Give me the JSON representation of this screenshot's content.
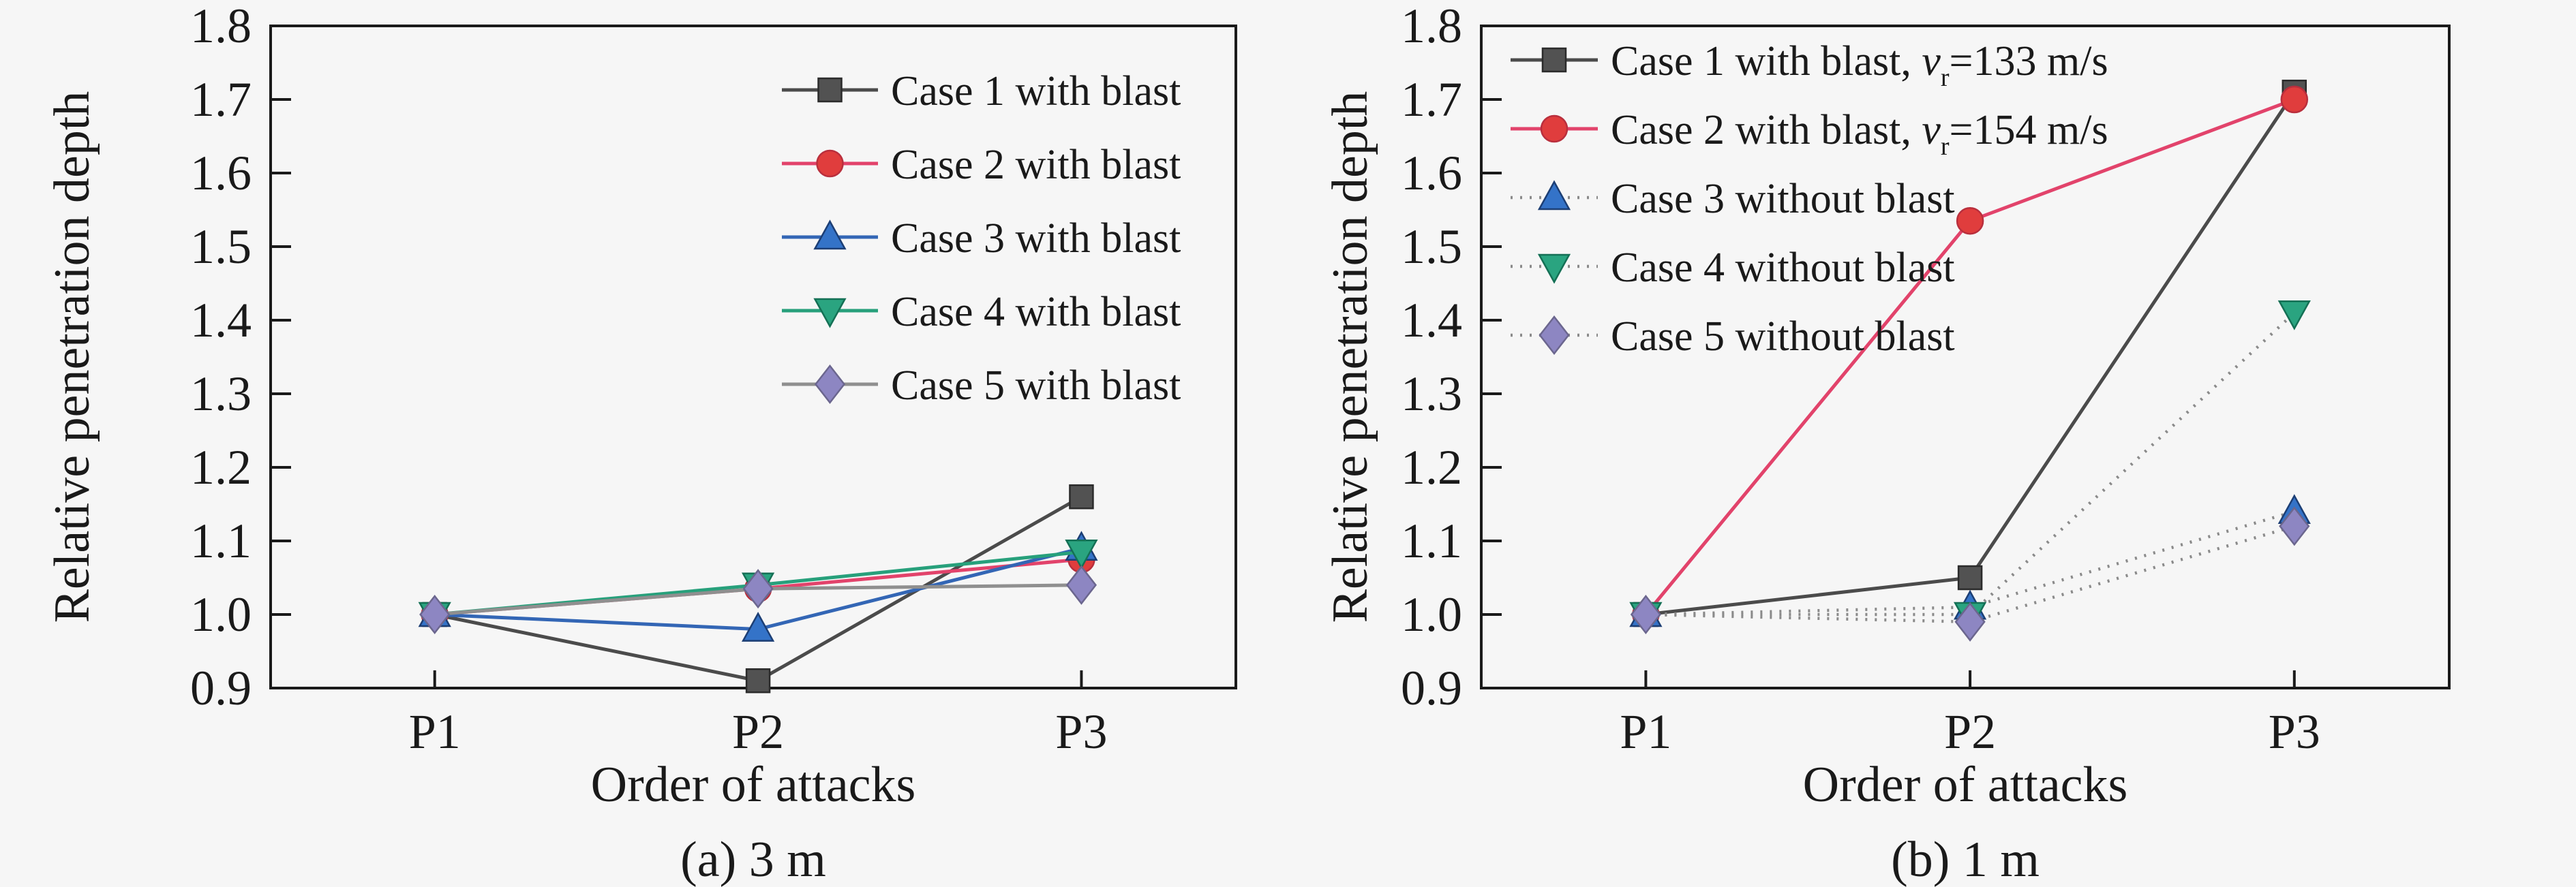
{
  "figure": {
    "background": "#f6f6f6",
    "frame_color": "#1a1a1a",
    "dotted_line_color": "#8a8a8a"
  },
  "chart_data": [
    {
      "type": "line",
      "caption": "(a) 3 m",
      "xlabel": "Order of attacks",
      "ylabel": "Relative penetration depth",
      "categories": [
        "P1",
        "P2",
        "P3"
      ],
      "ylim": [
        0.9,
        1.8
      ],
      "yticks": [
        "0.9",
        "1.0",
        "1.1",
        "1.2",
        "1.3",
        "1.4",
        "1.5",
        "1.6",
        "1.7",
        "1.8"
      ],
      "grid": false,
      "legend_position": "top-right-inside",
      "series": [
        {
          "name": "Case 1 with blast",
          "label_parts": [
            {
              "t": "Case 1 with blast"
            }
          ],
          "values": [
            1.0,
            0.91,
            1.16
          ],
          "marker": "square",
          "marker_color": "#525252",
          "marker_edge": "#2b2b2b",
          "line_color": "#4b4b4b",
          "line_style": "solid"
        },
        {
          "name": "Case 2 with blast",
          "label_parts": [
            {
              "t": "Case 2 with blast"
            }
          ],
          "values": [
            1.0,
            1.035,
            1.075
          ],
          "marker": "circle",
          "marker_color": "#e03d3d",
          "marker_edge": "#b92f3d",
          "line_color": "#e2436b",
          "line_style": "solid"
        },
        {
          "name": "Case 3 with blast",
          "label_parts": [
            {
              "t": "Case 3 with blast"
            }
          ],
          "values": [
            1.0,
            0.98,
            1.09
          ],
          "marker": "triangle-up",
          "marker_color": "#3473c8",
          "marker_edge": "#1c3e74",
          "line_color": "#3366b5",
          "line_style": "solid"
        },
        {
          "name": "Case 4 with blast",
          "label_parts": [
            {
              "t": "Case 4 with blast"
            }
          ],
          "values": [
            1.0,
            1.04,
            1.085
          ],
          "marker": "triangle-down",
          "marker_color": "#2aa480",
          "marker_edge": "#147055",
          "line_color": "#27a07b",
          "line_style": "solid"
        },
        {
          "name": "Case 5 with blast",
          "label_parts": [
            {
              "t": "Case 5 with blast"
            }
          ],
          "values": [
            1.0,
            1.035,
            1.04
          ],
          "marker": "diamond",
          "marker_color": "#8d86c2",
          "marker_edge": "#6b668e",
          "line_color": "#8f8f8f",
          "line_style": "solid"
        }
      ]
    },
    {
      "type": "line",
      "caption": "(b) 1 m",
      "xlabel": "Order of attacks",
      "ylabel": "Relative penetration depth",
      "categories": [
        "P1",
        "P2",
        "P3"
      ],
      "ylim": [
        0.9,
        1.8
      ],
      "yticks": [
        "0.9",
        "1.0",
        "1.1",
        "1.2",
        "1.3",
        "1.4",
        "1.5",
        "1.6",
        "1.7",
        "1.8"
      ],
      "grid": false,
      "legend_position": "top-left-inside",
      "series": [
        {
          "name": "Case 1 with blast, vr=133 m/s",
          "label_parts": [
            {
              "t": "Case 1 with blast, "
            },
            {
              "t": "v",
              "style": "italic"
            },
            {
              "t": "r",
              "style": "sub"
            },
            {
              "t": "=133 m/s"
            }
          ],
          "values": [
            1.0,
            1.05,
            1.71
          ],
          "marker": "square",
          "marker_color": "#525252",
          "marker_edge": "#2b2b2b",
          "line_color": "#4b4b4b",
          "line_style": "solid"
        },
        {
          "name": "Case 2 with blast, vr=154 m/s",
          "label_parts": [
            {
              "t": "Case 2 with blast, "
            },
            {
              "t": "v",
              "style": "italic"
            },
            {
              "t": "r",
              "style": "sub"
            },
            {
              "t": "=154 m/s"
            }
          ],
          "values": [
            1.0,
            1.535,
            1.7
          ],
          "marker": "circle",
          "marker_color": "#e03d3d",
          "marker_edge": "#b92f3d",
          "line_color": "#e2436b",
          "line_style": "solid"
        },
        {
          "name": "Case 3 without blast",
          "label_parts": [
            {
              "t": "Case 3 without blast"
            }
          ],
          "values": [
            1.0,
            1.01,
            1.14
          ],
          "marker": "triangle-up",
          "marker_color": "#3473c8",
          "marker_edge": "#1c3e74",
          "line_color": "#8a8a8a",
          "line_style": "dotted"
        },
        {
          "name": "Case 4 without blast",
          "label_parts": [
            {
              "t": "Case 4 without blast"
            }
          ],
          "values": [
            1.0,
            1.0,
            1.41
          ],
          "marker": "triangle-down",
          "marker_color": "#2aa480",
          "marker_edge": "#147055",
          "line_color": "#8a8a8a",
          "line_style": "dotted"
        },
        {
          "name": "Case 5 without blast",
          "label_parts": [
            {
              "t": "Case 5 without blast"
            }
          ],
          "values": [
            1.0,
            0.99,
            1.12
          ],
          "marker": "diamond",
          "marker_color": "#8d86c2",
          "marker_edge": "#6b668e",
          "line_color": "#8a8a8a",
          "line_style": "dotted"
        }
      ]
    }
  ]
}
